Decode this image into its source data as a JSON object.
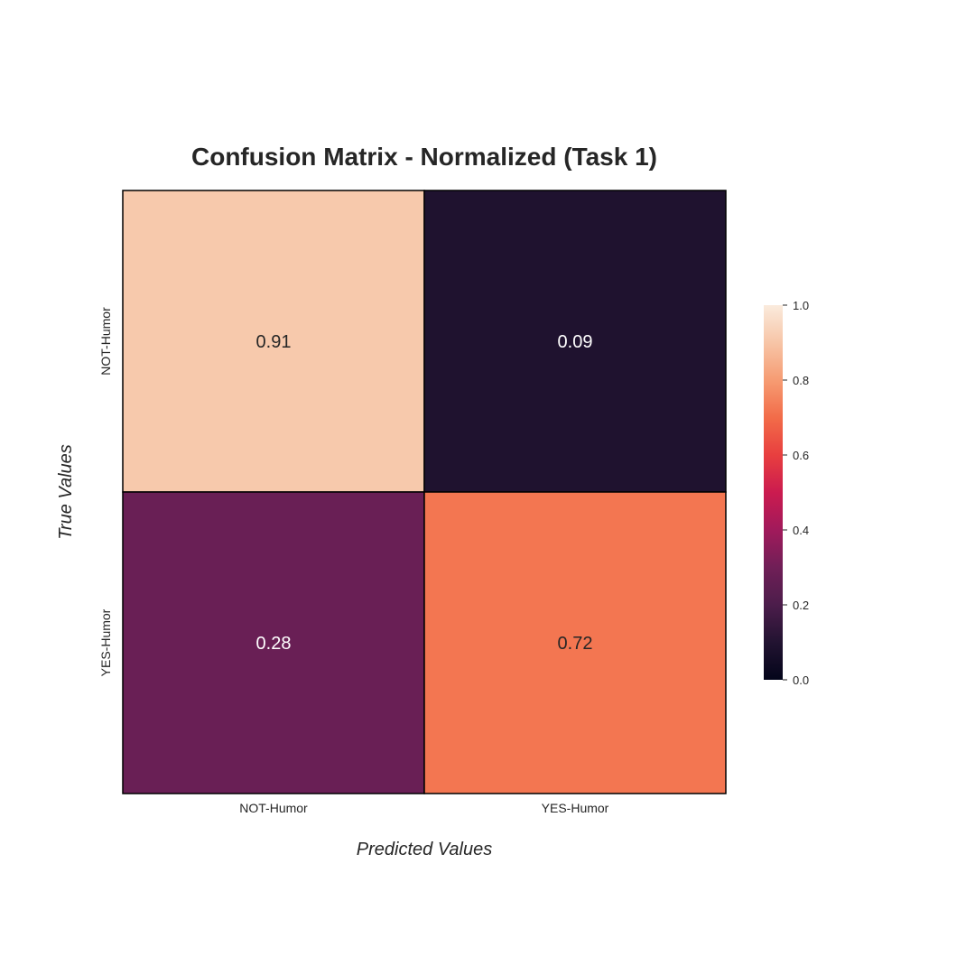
{
  "chart_data": {
    "type": "heatmap",
    "title": "Confusion Matrix - Normalized (Task 1)",
    "xlabel": "Predicted Values",
    "ylabel": "True Values",
    "x_categories": [
      "NOT-Humor",
      "YES-Humor"
    ],
    "y_categories": [
      "NOT-Humor",
      "YES-Humor"
    ],
    "values": [
      [
        0.91,
        0.09
      ],
      [
        0.28,
        0.72
      ]
    ],
    "value_labels": [
      [
        "0.91",
        "0.09"
      ],
      [
        "0.28",
        "0.72"
      ]
    ],
    "colorbar": {
      "min": 0.0,
      "max": 1.0,
      "ticks": [
        "0.0",
        "0.2",
        "0.4",
        "0.6",
        "0.8",
        "1.0"
      ],
      "colormap": "rocket",
      "colors": [
        "#03051a",
        "#221331",
        "#4c1d4b",
        "#701f57",
        "#a11a5b",
        "#cb1b4f",
        "#e83f3f",
        "#f26c49",
        "#f69c73",
        "#f7c5a7",
        "#faebdd"
      ]
    },
    "grid": false,
    "cell_border_color": "#000000"
  }
}
